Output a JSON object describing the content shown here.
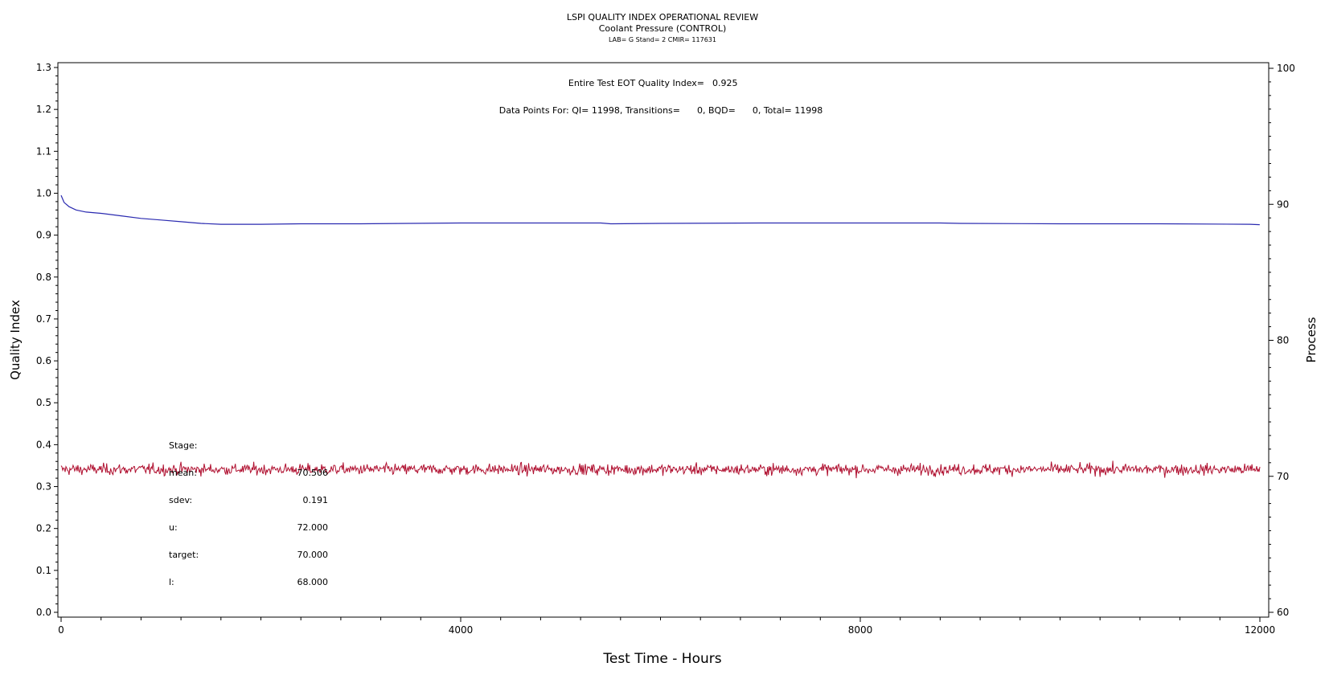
{
  "header": {
    "title": "LSPI QUALITY INDEX OPERATIONAL REVIEW",
    "subtitle": "Coolant Pressure (CONTROL)",
    "lab_line": "LAB= G Stand= 2 CMIR= 117631"
  },
  "annotations": {
    "eot_label": "Entire Test EOT Quality Index=",
    "eot_value": "0.925",
    "data_points": "Data Points For: QI= 11998, Transitions=      0, BQD=      0, Total= 11998"
  },
  "stats": [
    {
      "label": "Stage:",
      "value": ""
    },
    {
      "label": "mean:",
      "value": "70.506"
    },
    {
      "label": "sdev:",
      "value": "0.191"
    },
    {
      "label": "u:",
      "value": "72.000"
    },
    {
      "label": "target:",
      "value": "70.000"
    },
    {
      "label": "l:",
      "value": "68.000"
    }
  ],
  "colors": {
    "quality_index_line": "#2a2ab0",
    "process_line": "#b01030",
    "axis": "#000000"
  },
  "chart_data": {
    "type": "line",
    "title": "LSPI QUALITY INDEX OPERATIONAL REVIEW",
    "xlabel": "Test Time - Hours",
    "ylabel": "Quality Index",
    "y2label": "Process",
    "xlim": [
      0,
      12000
    ],
    "ylim": [
      0,
      1.3
    ],
    "y2lim": [
      60,
      100
    ],
    "x_ticks": [
      "0",
      "4000",
      "8000",
      "12000"
    ],
    "y_ticks": [
      "0.0",
      "0.1",
      "0.2",
      "0.3",
      "0.4",
      "0.5",
      "0.6",
      "0.7",
      "0.8",
      "0.9",
      "1.0",
      "1.1",
      "1.2",
      "1.3"
    ],
    "y2_ticks": [
      "60",
      "70",
      "80",
      "90",
      "100"
    ],
    "series": [
      {
        "axis": "left",
        "x": [
          0,
          30,
          80,
          150,
          250,
          400,
          600,
          800,
          1000,
          1200,
          1400,
          1600,
          2000,
          2400,
          3000,
          3500,
          4000,
          5000,
          5400,
          5500,
          6000,
          7000,
          8000,
          8800,
          9000,
          10000,
          11000,
          11900,
          11998
        ],
        "values": [
          0.995,
          0.978,
          0.968,
          0.96,
          0.955,
          0.952,
          0.946,
          0.94,
          0.936,
          0.932,
          0.928,
          0.926,
          0.926,
          0.927,
          0.927,
          0.928,
          0.929,
          0.929,
          0.929,
          0.927,
          0.928,
          0.929,
          0.929,
          0.929,
          0.928,
          0.927,
          0.927,
          0.926,
          0.925
        ]
      },
      {
        "axis": "right",
        "x": [
          0,
          12000
        ],
        "values": [
          70.506,
          70.506
        ],
        "mean": 70.506,
        "sdev": 0.191
      }
    ]
  }
}
